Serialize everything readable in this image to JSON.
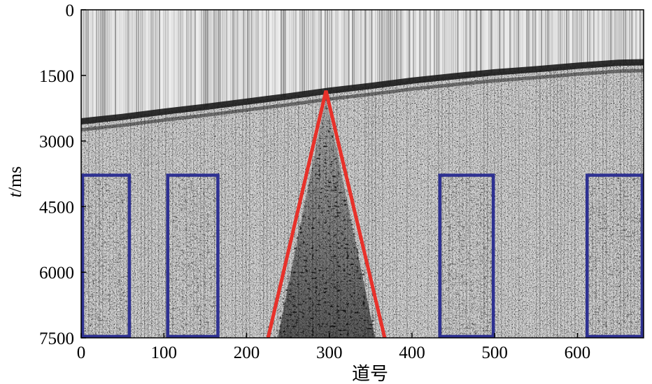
{
  "chart_data": {
    "type": "seismic-gather",
    "xlabel": "道号",
    "ylabel_italic": "t",
    "ylabel_unit": "/ms",
    "x_ticks": [
      0,
      100,
      200,
      300,
      400,
      500,
      600
    ],
    "y_ticks": [
      0,
      1500,
      3000,
      4500,
      6000,
      7500
    ],
    "xlim": [
      0,
      680
    ],
    "ylim": [
      0,
      7500
    ],
    "y_inverted": true,
    "first_break": {
      "trace": [
        0,
        50,
        100,
        150,
        200,
        250,
        300,
        350,
        400,
        450,
        500,
        550,
        600,
        650,
        680
      ],
      "time": [
        2550,
        2450,
        2330,
        2220,
        2100,
        1980,
        1850,
        1740,
        1620,
        1520,
        1430,
        1360,
        1280,
        1210,
        1200
      ]
    },
    "triangle": {
      "color": "#e8312a",
      "apex": {
        "trace": 296,
        "time": 1850
      },
      "base_left": {
        "trace": 225,
        "time": 7500
      },
      "base_right": {
        "trace": 368,
        "time": 7500
      }
    },
    "boxes": {
      "color": "#2e3192",
      "items": [
        {
          "trace_from": 0,
          "trace_to": 60,
          "time_from": 3750,
          "time_to": 7500
        },
        {
          "trace_from": 103,
          "trace_to": 167,
          "time_from": 3750,
          "time_to": 7500
        },
        {
          "trace_from": 432,
          "trace_to": 500,
          "time_from": 3750,
          "time_to": 7500
        },
        {
          "trace_from": 610,
          "trace_to": 680,
          "time_from": 3750,
          "time_to": 7500
        }
      ]
    }
  }
}
